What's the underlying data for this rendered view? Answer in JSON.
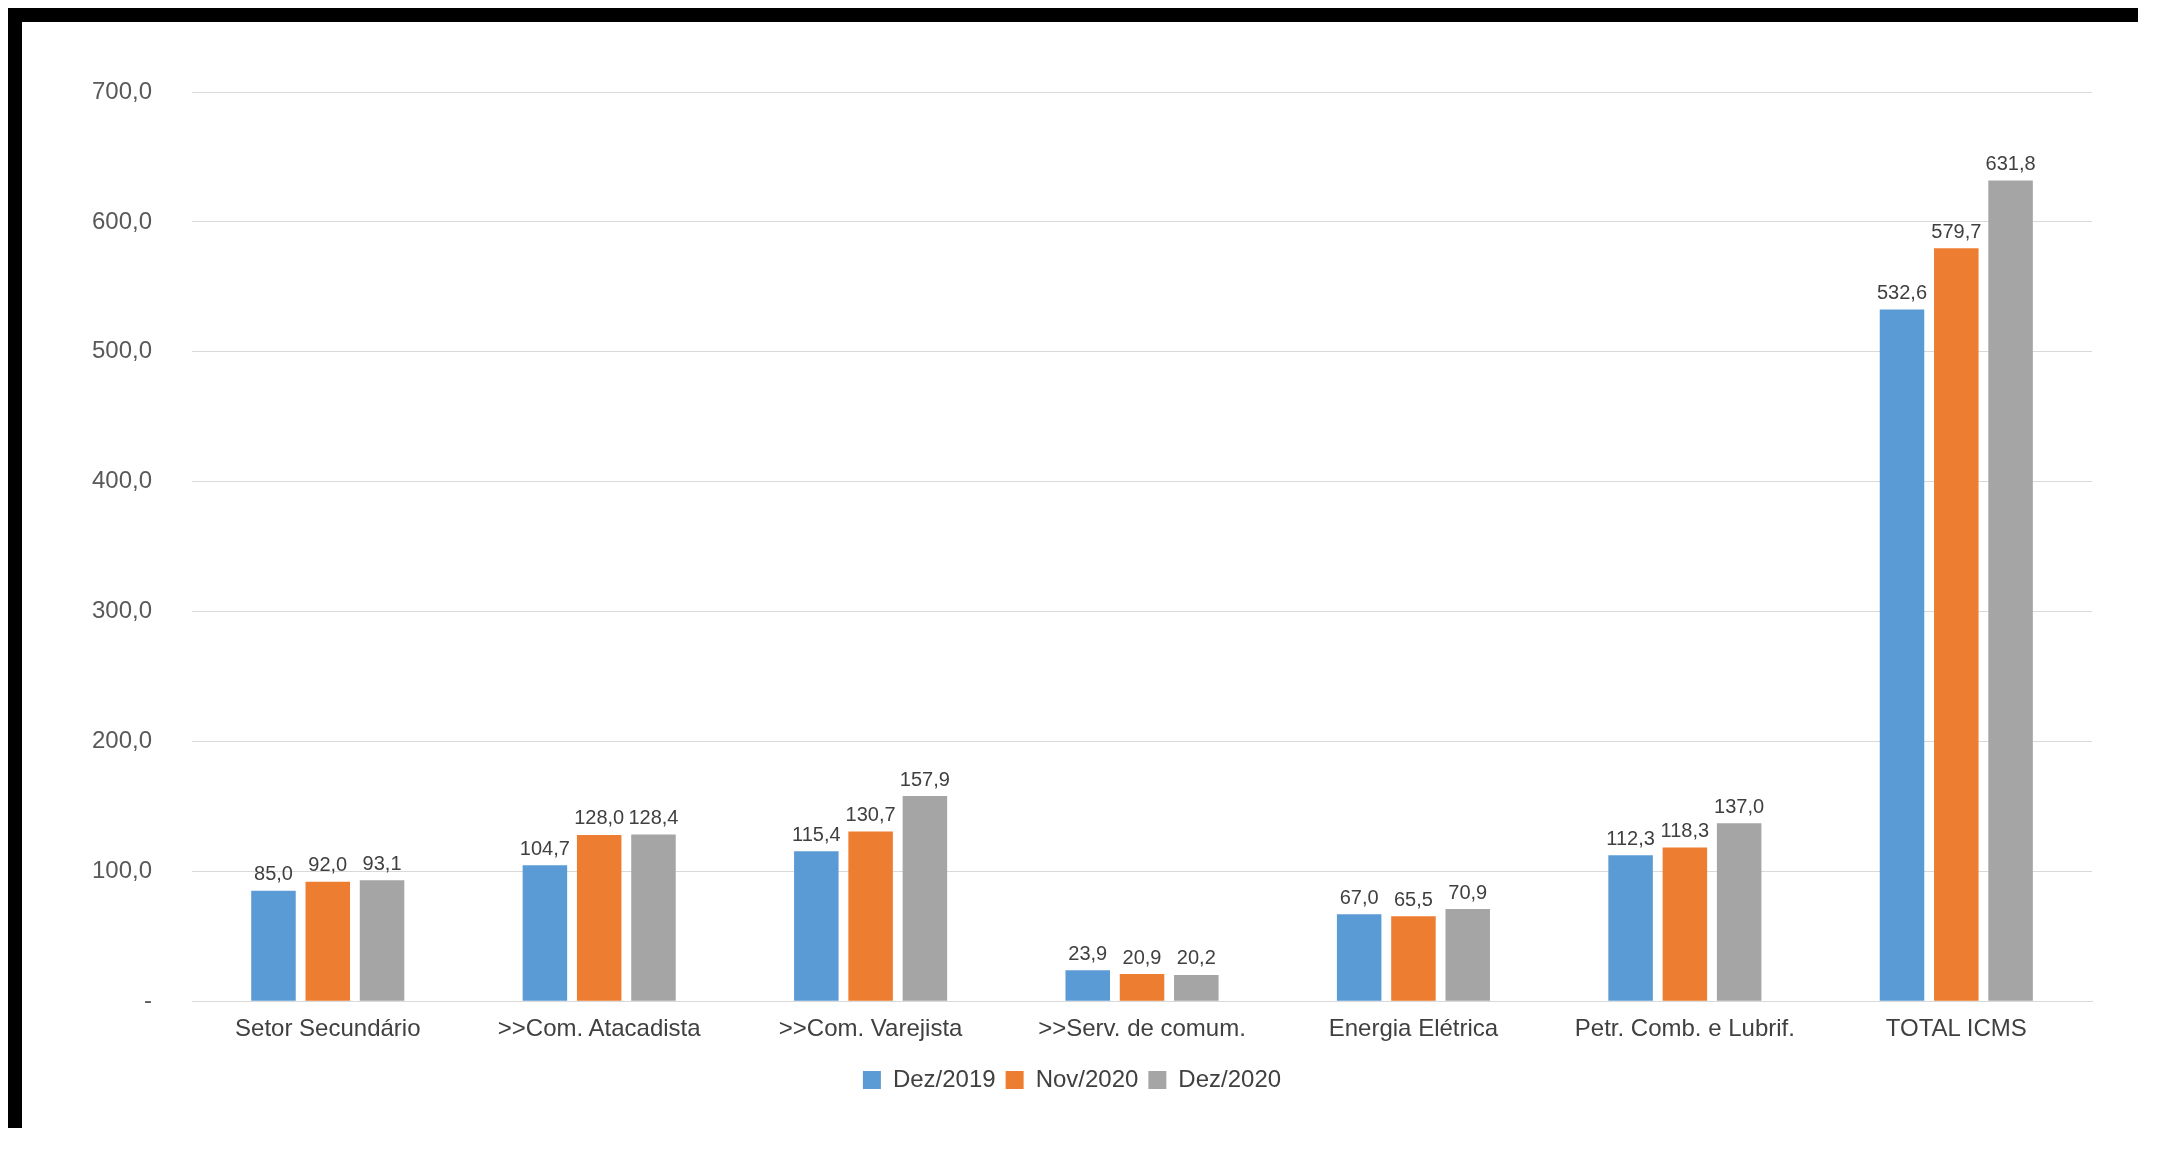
{
  "chart_data": {
    "type": "bar",
    "categories": [
      "Setor Secundário",
      ">>Com. Atacadista",
      ">>Com. Varejista",
      ">>Serv. de comum.",
      "Energia Elétrica",
      "Petr. Comb. e Lubrif.",
      "TOTAL ICMS"
    ],
    "series": [
      {
        "name": "Dez/2019",
        "color": "#5b9bd5",
        "values": [
          85.0,
          104.7,
          115.4,
          23.9,
          67.0,
          112.3,
          532.6
        ],
        "value_labels": [
          "85,0",
          "104,7",
          "115,4",
          "23,9",
          "67,0",
          "112,3",
          "532,6"
        ]
      },
      {
        "name": "Nov/2020",
        "color": "#ed7d31",
        "values": [
          92.0,
          128.0,
          130.7,
          20.9,
          65.5,
          118.3,
          579.7
        ],
        "value_labels": [
          "92,0",
          "128,0",
          "130,7",
          "20,9",
          "65,5",
          "118,3",
          "579,7"
        ]
      },
      {
        "name": "Dez/2020",
        "color": "#a5a5a5",
        "values": [
          93.1,
          128.4,
          157.9,
          20.2,
          70.9,
          137.0,
          631.8
        ],
        "value_labels": [
          "93,1",
          "128,4",
          "157,9",
          "20,2",
          "70,9",
          "137,0",
          "631,8"
        ]
      }
    ],
    "ylim": [
      0,
      700
    ],
    "yticks": [
      {
        "value": 0,
        "label": "-"
      },
      {
        "value": 100,
        "label": "100,0"
      },
      {
        "value": 200,
        "label": "200,0"
      },
      {
        "value": 300,
        "label": "300,0"
      },
      {
        "value": 400,
        "label": "400,0"
      },
      {
        "value": 500,
        "label": "500,0"
      },
      {
        "value": 600,
        "label": "600,0"
      },
      {
        "value": 700,
        "label": "700,0"
      }
    ],
    "grid": "y",
    "legend": "bottom"
  }
}
